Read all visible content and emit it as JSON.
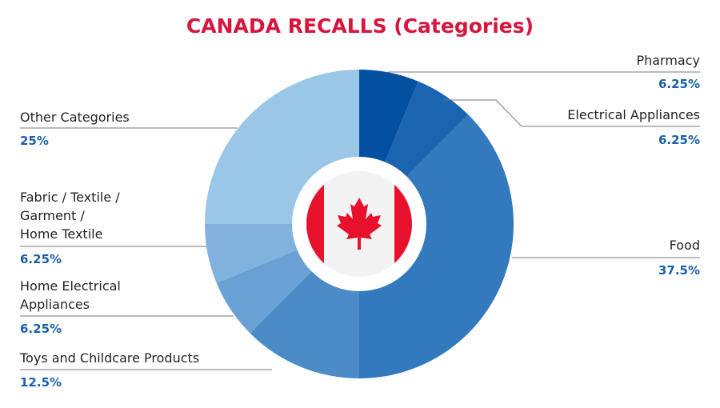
{
  "chart_data": {
    "type": "pie",
    "title": "CANADA RECALLS (Categories)",
    "categories": [
      "Pharmacy",
      "Electrical Appliances",
      "Food",
      "Toys and Childcare Products",
      "Home Electrical\nAppliances",
      "Fabric / Textile /\nGarment /\nHome Textile",
      "Other Categories"
    ],
    "values": [
      6.25,
      6.25,
      37.5,
      12.5,
      6.25,
      6.25,
      25
    ],
    "value_labels": [
      "6.25%",
      "6.25%",
      "37.5%",
      "12.5%",
      "6.25%",
      "6.25%",
      "25%"
    ],
    "colors": [
      "#0350a0",
      "#1a64b0",
      "#3279bd",
      "#4a8bc8",
      "#6aa1d5",
      "#80b2dd",
      "#9ac7e7"
    ]
  }
}
